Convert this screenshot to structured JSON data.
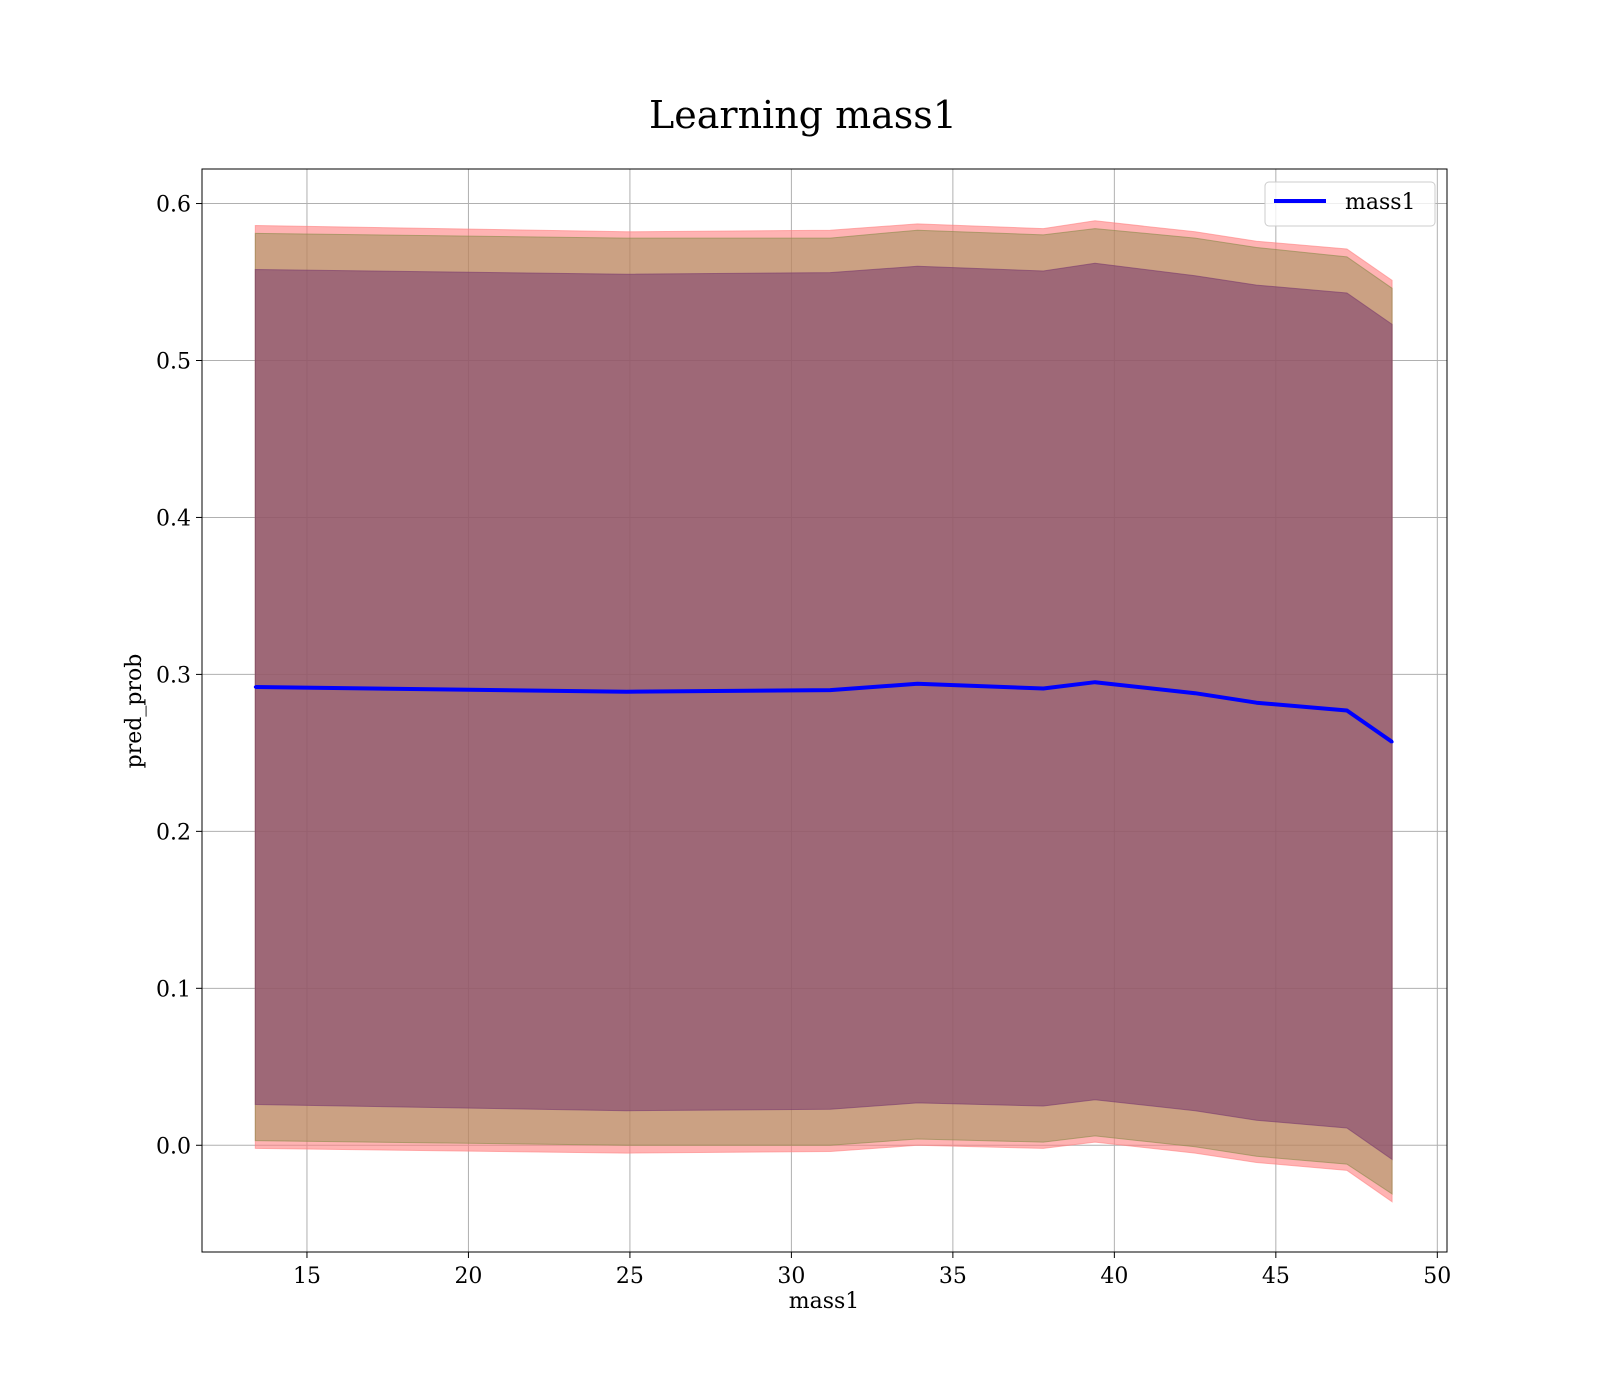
{
  "chart_data": {
    "type": "line",
    "title": "Learning mass1",
    "xlabel": "mass1",
    "ylabel": "pred_prob",
    "xlim": [
      11.75,
      50.3
    ],
    "ylim": [
      -0.068,
      0.622
    ],
    "xticks": [
      15,
      20,
      25,
      30,
      35,
      40,
      45,
      50
    ],
    "yticks": [
      0.0,
      0.1,
      0.2,
      0.3,
      0.4,
      0.5,
      0.6
    ],
    "ytick_labels": [
      "0.0",
      "0.1",
      "0.2",
      "0.3",
      "0.4",
      "0.5",
      "0.6"
    ],
    "grid": true,
    "legend": {
      "position": "top-right",
      "entries": [
        "mass1"
      ]
    },
    "x": [
      13.4,
      24.9,
      31.2,
      33.9,
      37.8,
      39.4,
      42.5,
      44.4,
      47.2,
      48.6
    ],
    "series": [
      {
        "name": "mass1",
        "color": "#0000ff",
        "values": [
          0.292,
          0.289,
          0.29,
          0.294,
          0.291,
          0.295,
          0.288,
          0.282,
          0.277,
          0.257
        ]
      }
    ],
    "bands": [
      {
        "color": "#ff8080",
        "opacity": 0.6,
        "lower": [
          -0.002,
          -0.005,
          -0.004,
          0.0,
          -0.002,
          0.002,
          -0.005,
          -0.011,
          -0.016,
          -0.036
        ],
        "upper": [
          0.586,
          0.582,
          0.583,
          0.587,
          0.584,
          0.589,
          0.582,
          0.576,
          0.571,
          0.551
        ]
      },
      {
        "color": "#8b8b4a",
        "opacity": 0.45,
        "lower": [
          0.003,
          0.0,
          0.0,
          0.004,
          0.002,
          0.006,
          -0.001,
          -0.007,
          -0.012,
          -0.031
        ],
        "upper": [
          0.581,
          0.578,
          0.578,
          0.583,
          0.58,
          0.584,
          0.578,
          0.572,
          0.566,
          0.546
        ]
      },
      {
        "color": "#7a3a6e",
        "opacity": 0.55,
        "lower": [
          0.026,
          0.022,
          0.023,
          0.027,
          0.025,
          0.029,
          0.022,
          0.016,
          0.011,
          -0.009
        ],
        "upper": [
          0.558,
          0.555,
          0.556,
          0.56,
          0.557,
          0.562,
          0.554,
          0.548,
          0.543,
          0.523
        ]
      }
    ]
  }
}
